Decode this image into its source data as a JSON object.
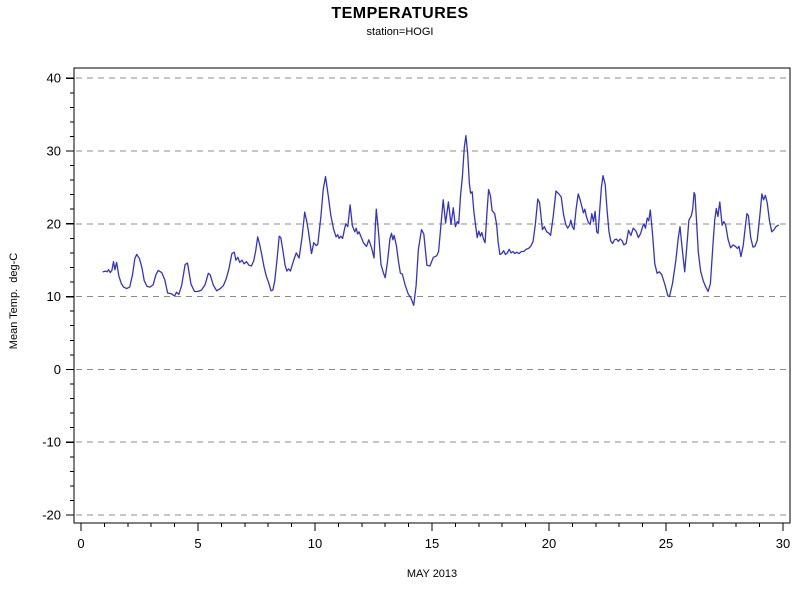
{
  "chart_data": {
    "type": "line",
    "title": "TEMPERATURES",
    "subtitle": "station=HOGI",
    "xlabel": "MAY 2013",
    "ylabel": "Mean Temp.  deg-C",
    "xlim": [
      -0.3,
      30.3
    ],
    "ylim": [
      -21.1,
      41.4
    ],
    "x_major_ticks": [
      0,
      5,
      10,
      15,
      20,
      25,
      30
    ],
    "x_minor_step": 1,
    "x_minor_range": [
      0,
      30
    ],
    "y_major_ticks": [
      -20,
      -10,
      0,
      10,
      20,
      30,
      40
    ],
    "y_minor_step": 2,
    "y_minor_range": [
      -20,
      40
    ],
    "grid": "horizontal-dashed",
    "legend": "none",
    "line_color": "#3333CC",
    "grid_color": "#8c8c8c",
    "axis_color": "#000000",
    "series": [
      {
        "name": "Mean Temp",
        "points": [
          [
            0.95,
            13.4
          ],
          [
            1.05,
            13.5
          ],
          [
            1.12,
            13.4
          ],
          [
            1.18,
            13.7
          ],
          [
            1.25,
            13.3
          ],
          [
            1.32,
            13.6
          ],
          [
            1.39,
            14.8
          ],
          [
            1.45,
            13.7
          ],
          [
            1.52,
            14.7
          ],
          [
            1.62,
            12.8
          ],
          [
            1.72,
            11.8
          ],
          [
            1.82,
            11.3
          ],
          [
            1.95,
            11.1
          ],
          [
            2.08,
            11.3
          ],
          [
            2.2,
            13.0
          ],
          [
            2.3,
            15.2
          ],
          [
            2.38,
            15.8
          ],
          [
            2.5,
            15.2
          ],
          [
            2.6,
            14.0
          ],
          [
            2.7,
            12.2
          ],
          [
            2.82,
            11.4
          ],
          [
            2.95,
            11.3
          ],
          [
            3.08,
            11.6
          ],
          [
            3.2,
            13.0
          ],
          [
            3.3,
            13.6
          ],
          [
            3.45,
            13.3
          ],
          [
            3.58,
            12.3
          ],
          [
            3.7,
            10.5
          ],
          [
            3.85,
            10.4
          ],
          [
            4.0,
            10.1
          ],
          [
            4.08,
            10.6
          ],
          [
            4.18,
            10.3
          ],
          [
            4.3,
            11.5
          ],
          [
            4.45,
            14.4
          ],
          [
            4.55,
            14.6
          ],
          [
            4.7,
            11.7
          ],
          [
            4.85,
            10.7
          ],
          [
            5.0,
            10.7
          ],
          [
            5.15,
            10.9
          ],
          [
            5.3,
            11.6
          ],
          [
            5.44,
            13.2
          ],
          [
            5.52,
            13.0
          ],
          [
            5.65,
            11.6
          ],
          [
            5.8,
            10.8
          ],
          [
            5.95,
            11.1
          ],
          [
            6.08,
            11.5
          ],
          [
            6.2,
            12.4
          ],
          [
            6.32,
            13.8
          ],
          [
            6.45,
            15.9
          ],
          [
            6.55,
            16.1
          ],
          [
            6.62,
            15.0
          ],
          [
            6.7,
            15.4
          ],
          [
            6.78,
            14.7
          ],
          [
            6.88,
            15.0
          ],
          [
            6.97,
            14.5
          ],
          [
            7.07,
            14.8
          ],
          [
            7.18,
            14.3
          ],
          [
            7.28,
            14.2
          ],
          [
            7.38,
            14.9
          ],
          [
            7.46,
            16.2
          ],
          [
            7.55,
            18.2
          ],
          [
            7.63,
            17.2
          ],
          [
            7.72,
            15.8
          ],
          [
            7.82,
            14.1
          ],
          [
            7.92,
            12.8
          ],
          [
            8.02,
            11.9
          ],
          [
            8.12,
            10.8
          ],
          [
            8.2,
            10.9
          ],
          [
            8.28,
            12.2
          ],
          [
            8.38,
            15.2
          ],
          [
            8.47,
            18.3
          ],
          [
            8.54,
            18.1
          ],
          [
            8.62,
            16.5
          ],
          [
            8.72,
            14.3
          ],
          [
            8.8,
            13.5
          ],
          [
            8.87,
            13.8
          ],
          [
            8.95,
            13.5
          ],
          [
            9.1,
            15.1
          ],
          [
            9.2,
            16.0
          ],
          [
            9.32,
            15.3
          ],
          [
            9.45,
            18.2
          ],
          [
            9.56,
            21.6
          ],
          [
            9.65,
            20.3
          ],
          [
            9.72,
            18.9
          ],
          [
            9.85,
            15.9
          ],
          [
            9.95,
            17.4
          ],
          [
            10.05,
            17.0
          ],
          [
            10.12,
            17.2
          ],
          [
            10.25,
            21.0
          ],
          [
            10.35,
            24.7
          ],
          [
            10.45,
            26.5
          ],
          [
            10.57,
            23.8
          ],
          [
            10.68,
            21.1
          ],
          [
            10.8,
            19.2
          ],
          [
            10.9,
            18.2
          ],
          [
            10.97,
            18.5
          ],
          [
            11.03,
            18.0
          ],
          [
            11.1,
            18.3
          ],
          [
            11.18,
            18.0
          ],
          [
            11.27,
            19.4
          ],
          [
            11.32,
            20.0
          ],
          [
            11.4,
            19.6
          ],
          [
            11.5,
            22.6
          ],
          [
            11.6,
            19.7
          ],
          [
            11.7,
            18.9
          ],
          [
            11.76,
            19.4
          ],
          [
            11.82,
            18.6
          ],
          [
            11.88,
            18.9
          ],
          [
            11.97,
            18.2
          ],
          [
            12.07,
            17.4
          ],
          [
            12.2,
            16.9
          ],
          [
            12.3,
            17.8
          ],
          [
            12.42,
            16.7
          ],
          [
            12.52,
            15.3
          ],
          [
            12.58,
            19.8
          ],
          [
            12.62,
            22.0
          ],
          [
            12.72,
            18.5
          ],
          [
            12.82,
            14.4
          ],
          [
            12.92,
            13.3
          ],
          [
            13.0,
            12.6
          ],
          [
            13.1,
            14.8
          ],
          [
            13.2,
            17.9
          ],
          [
            13.27,
            18.7
          ],
          [
            13.33,
            17.8
          ],
          [
            13.38,
            18.4
          ],
          [
            13.48,
            17.0
          ],
          [
            13.57,
            14.8
          ],
          [
            13.65,
            13.2
          ],
          [
            13.73,
            13.1
          ],
          [
            13.85,
            11.6
          ],
          [
            13.98,
            10.4
          ],
          [
            14.1,
            9.8
          ],
          [
            14.22,
            8.8
          ],
          [
            14.32,
            11.5
          ],
          [
            14.42,
            16.5
          ],
          [
            14.55,
            19.2
          ],
          [
            14.65,
            18.6
          ],
          [
            14.78,
            14.3
          ],
          [
            14.91,
            14.2
          ],
          [
            15.06,
            15.4
          ],
          [
            15.2,
            15.6
          ],
          [
            15.28,
            16.2
          ],
          [
            15.36,
            19.0
          ],
          [
            15.48,
            23.3
          ],
          [
            15.58,
            20.1
          ],
          [
            15.7,
            23.0
          ],
          [
            15.81,
            19.9
          ],
          [
            15.91,
            22.2
          ],
          [
            16.0,
            19.6
          ],
          [
            16.08,
            20.3
          ],
          [
            16.14,
            20.0
          ],
          [
            16.22,
            23.8
          ],
          [
            16.3,
            26.5
          ],
          [
            16.38,
            30.5
          ],
          [
            16.45,
            32.1
          ],
          [
            16.52,
            29.8
          ],
          [
            16.6,
            25.5
          ],
          [
            16.65,
            24.2
          ],
          [
            16.72,
            24.4
          ],
          [
            16.79,
            21.6
          ],
          [
            16.86,
            19.9
          ],
          [
            16.93,
            18.1
          ],
          [
            17.0,
            19.0
          ],
          [
            17.07,
            18.3
          ],
          [
            17.13,
            18.8
          ],
          [
            17.2,
            17.9
          ],
          [
            17.27,
            17.4
          ],
          [
            17.35,
            21.6
          ],
          [
            17.42,
            24.7
          ],
          [
            17.5,
            23.8
          ],
          [
            17.57,
            21.8
          ],
          [
            17.68,
            21.4
          ],
          [
            17.76,
            19.9
          ],
          [
            17.83,
            17.4
          ],
          [
            17.9,
            15.8
          ],
          [
            17.98,
            15.9
          ],
          [
            18.06,
            16.3
          ],
          [
            18.14,
            15.8
          ],
          [
            18.22,
            16.0
          ],
          [
            18.3,
            16.5
          ],
          [
            18.38,
            16.0
          ],
          [
            18.46,
            16.2
          ],
          [
            18.54,
            15.9
          ],
          [
            18.62,
            16.1
          ],
          [
            18.72,
            15.9
          ],
          [
            18.82,
            16.2
          ],
          [
            18.92,
            16.2
          ],
          [
            19.02,
            16.5
          ],
          [
            19.12,
            16.6
          ],
          [
            19.22,
            16.9
          ],
          [
            19.32,
            17.6
          ],
          [
            19.42,
            20.0
          ],
          [
            19.52,
            23.4
          ],
          [
            19.6,
            22.9
          ],
          [
            19.72,
            19.2
          ],
          [
            19.8,
            19.6
          ],
          [
            19.9,
            18.9
          ],
          [
            20.0,
            18.7
          ],
          [
            20.07,
            18.4
          ],
          [
            20.18,
            21.0
          ],
          [
            20.3,
            24.5
          ],
          [
            20.42,
            24.1
          ],
          [
            20.52,
            23.7
          ],
          [
            20.62,
            21.3
          ],
          [
            20.72,
            19.9
          ],
          [
            20.8,
            19.4
          ],
          [
            20.88,
            19.8
          ],
          [
            20.93,
            20.5
          ],
          [
            21.0,
            19.6
          ],
          [
            21.07,
            19.2
          ],
          [
            21.16,
            22.0
          ],
          [
            21.25,
            24.1
          ],
          [
            21.32,
            23.4
          ],
          [
            21.4,
            22.4
          ],
          [
            21.47,
            21.5
          ],
          [
            21.53,
            22.0
          ],
          [
            21.6,
            21.0
          ],
          [
            21.68,
            20.2
          ],
          [
            21.76,
            19.9
          ],
          [
            21.83,
            21.4
          ],
          [
            21.9,
            20.3
          ],
          [
            21.97,
            21.7
          ],
          [
            22.04,
            18.9
          ],
          [
            22.1,
            18.7
          ],
          [
            22.16,
            21.5
          ],
          [
            22.24,
            25.0
          ],
          [
            22.31,
            26.6
          ],
          [
            22.4,
            25.4
          ],
          [
            22.48,
            22.0
          ],
          [
            22.56,
            19.0
          ],
          [
            22.64,
            17.6
          ],
          [
            22.72,
            17.3
          ],
          [
            22.8,
            17.8
          ],
          [
            22.88,
            17.9
          ],
          [
            22.96,
            17.6
          ],
          [
            23.04,
            17.9
          ],
          [
            23.12,
            17.7
          ],
          [
            23.2,
            17.1
          ],
          [
            23.3,
            17.3
          ],
          [
            23.4,
            19.1
          ],
          [
            23.5,
            18.4
          ],
          [
            23.6,
            19.4
          ],
          [
            23.72,
            19.0
          ],
          [
            23.82,
            18.1
          ],
          [
            23.92,
            18.7
          ],
          [
            24.0,
            19.6
          ],
          [
            24.06,
            20.0
          ],
          [
            24.12,
            19.4
          ],
          [
            24.2,
            20.8
          ],
          [
            24.26,
            20.4
          ],
          [
            24.33,
            21.9
          ],
          [
            24.42,
            18.8
          ],
          [
            24.52,
            14.5
          ],
          [
            24.62,
            13.2
          ],
          [
            24.72,
            13.4
          ],
          [
            24.82,
            13.0
          ],
          [
            24.95,
            11.7
          ],
          [
            25.08,
            10.1
          ],
          [
            25.15,
            10.0
          ],
          [
            25.28,
            11.8
          ],
          [
            25.42,
            14.9
          ],
          [
            25.52,
            18.0
          ],
          [
            25.6,
            19.6
          ],
          [
            25.7,
            16.3
          ],
          [
            25.8,
            13.4
          ],
          [
            25.9,
            17.2
          ],
          [
            25.98,
            20.5
          ],
          [
            26.08,
            21.1
          ],
          [
            26.14,
            22.0
          ],
          [
            26.2,
            24.3
          ],
          [
            26.24,
            24.0
          ],
          [
            26.3,
            20.7
          ],
          [
            26.38,
            16.1
          ],
          [
            26.48,
            13.5
          ],
          [
            26.6,
            12.1
          ],
          [
            26.7,
            11.3
          ],
          [
            26.8,
            10.7
          ],
          [
            26.9,
            11.8
          ],
          [
            27.0,
            16.8
          ],
          [
            27.08,
            20.5
          ],
          [
            27.15,
            22.1
          ],
          [
            27.22,
            21.0
          ],
          [
            27.3,
            23.0
          ],
          [
            27.4,
            19.8
          ],
          [
            27.47,
            20.3
          ],
          [
            27.55,
            19.8
          ],
          [
            27.65,
            17.9
          ],
          [
            27.76,
            16.7
          ],
          [
            27.87,
            17.1
          ],
          [
            27.97,
            16.9
          ],
          [
            28.05,
            16.6
          ],
          [
            28.12,
            16.9
          ],
          [
            28.2,
            15.5
          ],
          [
            28.3,
            17.0
          ],
          [
            28.4,
            19.8
          ],
          [
            28.46,
            21.4
          ],
          [
            28.52,
            21.1
          ],
          [
            28.62,
            18.1
          ],
          [
            28.72,
            16.8
          ],
          [
            28.8,
            16.9
          ],
          [
            28.9,
            17.7
          ],
          [
            29.0,
            20.8
          ],
          [
            29.1,
            24.1
          ],
          [
            29.17,
            23.3
          ],
          [
            29.25,
            23.9
          ],
          [
            29.33,
            22.8
          ],
          [
            29.42,
            20.5
          ],
          [
            29.52,
            18.9
          ],
          [
            29.6,
            19.1
          ],
          [
            29.7,
            19.6
          ],
          [
            29.8,
            19.8
          ]
        ]
      }
    ]
  }
}
